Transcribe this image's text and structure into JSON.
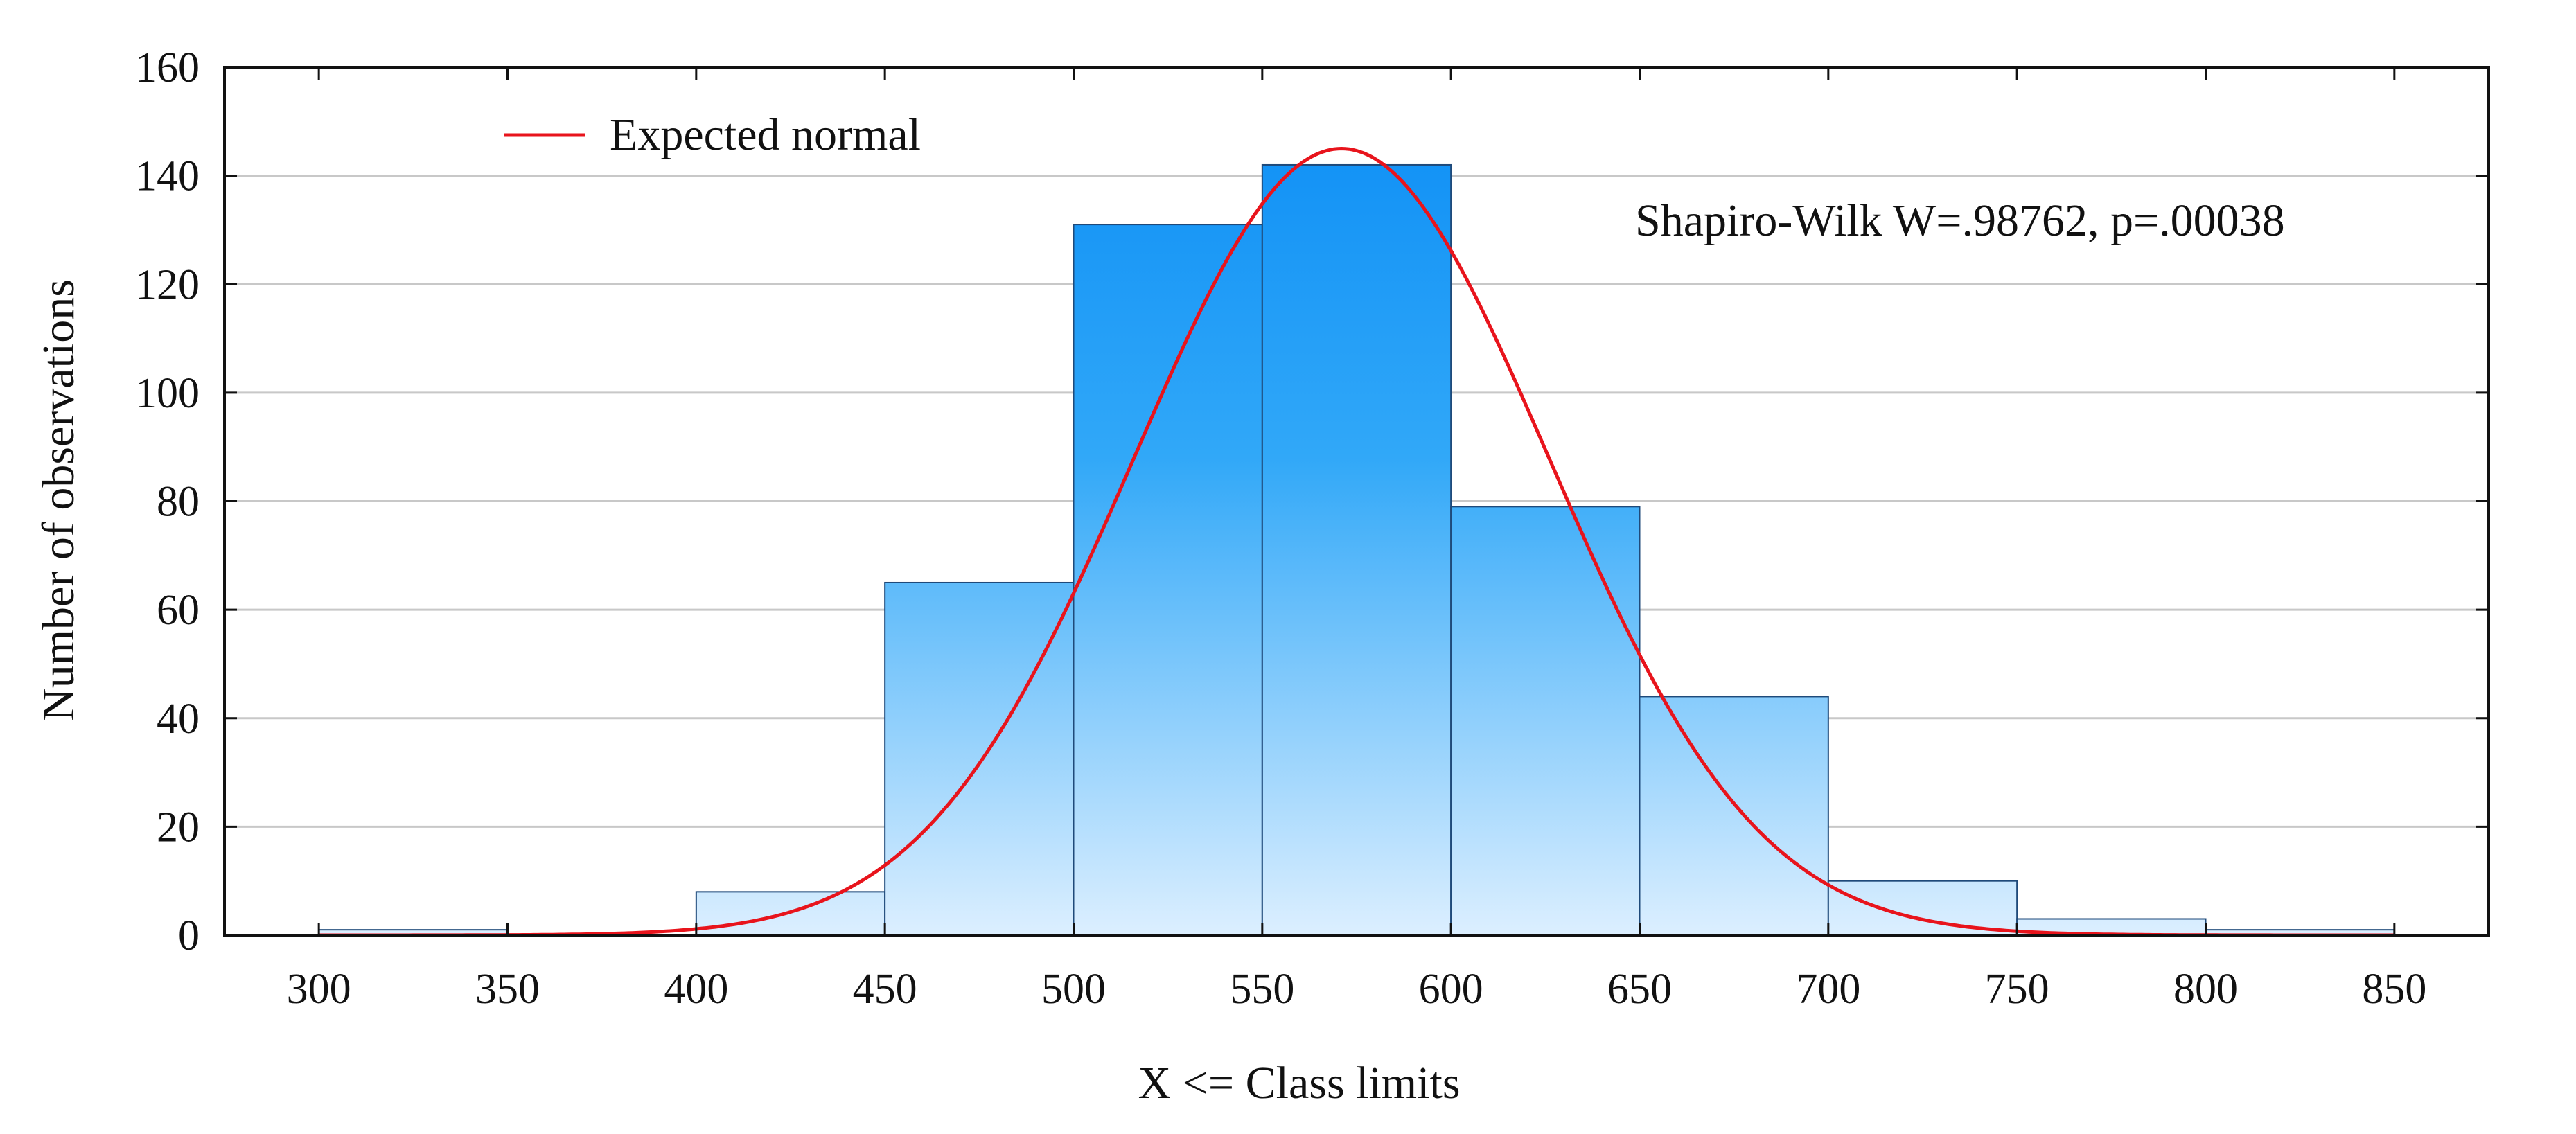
{
  "chart_data": {
    "type": "bar",
    "subtype": "histogram",
    "title": "",
    "xlabel": "X <= Class limits",
    "ylabel": "Number of observations",
    "xlim": [
      275,
      875
    ],
    "ylim": [
      0,
      160
    ],
    "x_ticks": [
      300,
      350,
      400,
      450,
      500,
      550,
      600,
      650,
      700,
      750,
      800,
      850
    ],
    "y_ticks": [
      0,
      20,
      40,
      60,
      80,
      100,
      120,
      140,
      160
    ],
    "grid": true,
    "bins": [
      {
        "from": 300,
        "to": 350,
        "value": 1
      },
      {
        "from": 350,
        "to": 400,
        "value": 0
      },
      {
        "from": 400,
        "to": 450,
        "value": 8
      },
      {
        "from": 450,
        "to": 500,
        "value": 65
      },
      {
        "from": 500,
        "to": 550,
        "value": 131
      },
      {
        "from": 550,
        "to": 600,
        "value": 142
      },
      {
        "from": 600,
        "to": 650,
        "value": 79
      },
      {
        "from": 650,
        "to": 700,
        "value": 44
      },
      {
        "from": 700,
        "to": 750,
        "value": 10
      },
      {
        "from": 750,
        "to": 800,
        "value": 3
      },
      {
        "from": 800,
        "to": 850,
        "value": 1
      }
    ],
    "expected_normal": {
      "name": "Expected normal",
      "color": "#e8141c",
      "mean": 571,
      "sd": 55,
      "peak": 145
    },
    "legend": {
      "label": "Expected normal",
      "placement": "top-left"
    },
    "annotation": "Shapiro-Wilk W=.98762, p=.00038",
    "colors": {
      "bar_top": "#0a8cf5",
      "bar_bottom": "#dcefff",
      "bar_edge": "#1f4a7a",
      "grid": "#c8c8c8",
      "axis": "#111111"
    }
  }
}
